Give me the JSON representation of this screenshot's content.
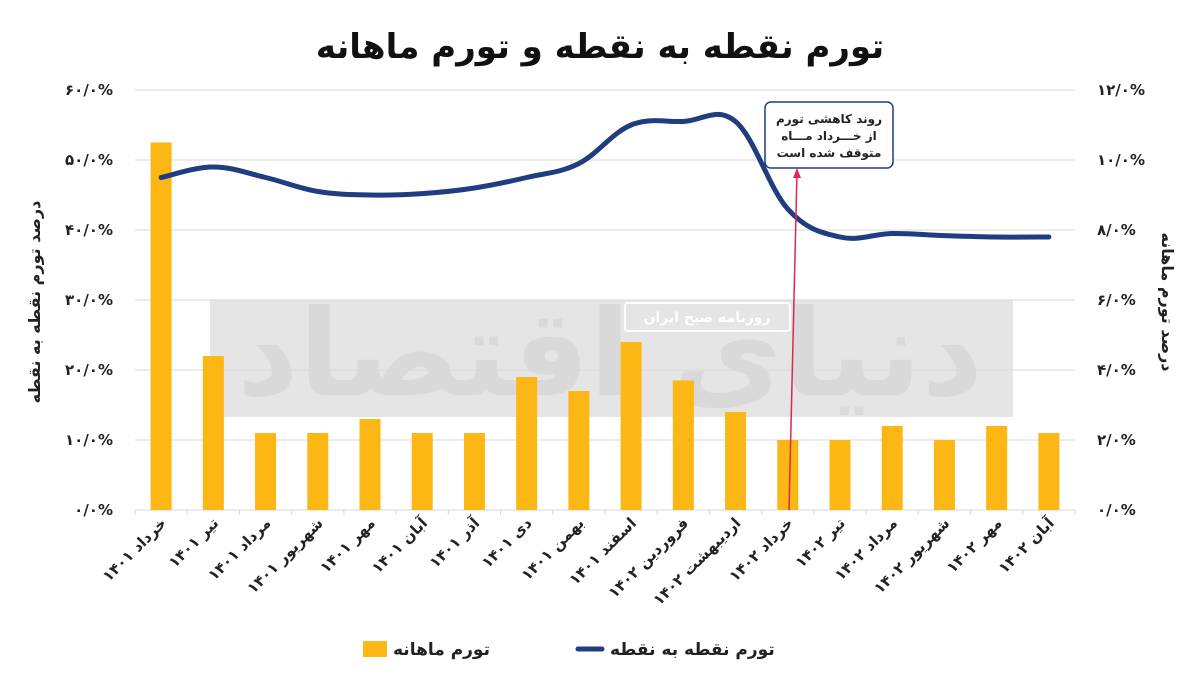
{
  "chart_data": {
    "type": "bar+line",
    "title": "تورم نقطه به نقطه و تورم ماهانه",
    "categories": [
      "خرداد ۱۴۰۱",
      "تیر ۱۴۰۱",
      "مرداد ۱۴۰۱",
      "شهریور ۱۴۰۱",
      "مهر ۱۴۰۱",
      "آبان ۱۴۰۱",
      "آذر ۱۴۰۱",
      "دی ۱۴۰۱",
      "بهمن ۱۴۰۱",
      "اسفند ۱۴۰۱",
      "فروردین ۱۴۰۲",
      "اردیبهشت ۱۴۰۲",
      "خرداد ۱۴۰۲",
      "تیر ۱۴۰۲",
      "مرداد ۱۴۰۲",
      "شهریور ۱۴۰۲",
      "مهر ۱۴۰۲",
      "آبان ۱۴۰۲"
    ],
    "y_left": {
      "label": "درصد تورم نقطه به نقطه",
      "range": [
        0,
        60
      ],
      "ticks": [
        "۰/۰%",
        "۱۰/۰%",
        "۲۰/۰%",
        "۳۰/۰%",
        "۴۰/۰%",
        "۵۰/۰%",
        "۶۰/۰%"
      ]
    },
    "y_right": {
      "label": "درصد تورم ماهانه",
      "range": [
        0,
        12
      ],
      "ticks": [
        "۰/۰%",
        "۲/۰%",
        "۴/۰%",
        "۶/۰%",
        "۸/۰%",
        "۱۰/۰%",
        "۱۲/۰%"
      ]
    },
    "series": [
      {
        "name": "تورم ماهانه",
        "type": "bar",
        "axis": "right",
        "color": "#FDB714",
        "values": [
          10.5,
          4.4,
          2.2,
          2.2,
          2.6,
          2.2,
          2.2,
          3.8,
          3.4,
          4.8,
          3.7,
          2.8,
          2.0,
          2.0,
          2.4,
          2.0,
          2.4,
          2.2
        ]
      },
      {
        "name": "تورم نقطه به نقطه",
        "type": "line",
        "axis": "left",
        "color": "#1F3D7F",
        "values": [
          47.5,
          49.0,
          47.5,
          45.5,
          45.0,
          45.2,
          46.0,
          47.5,
          49.5,
          55.0,
          55.5,
          55.5,
          43.0,
          39.0,
          39.5,
          39.2,
          39.0,
          39.0
        ]
      }
    ],
    "annotation": {
      "lines": [
        "روند کاهشی تورم",
        "از خـــرداد مـــاه",
        "متوقف شده است"
      ],
      "category": "خرداد ۱۴۰۲"
    },
    "watermark": {
      "badge": "روزنامه صبح ایران",
      "logo": "دنیای اقتصاد"
    },
    "grid": "horizontal",
    "legend_position": "bottom"
  }
}
